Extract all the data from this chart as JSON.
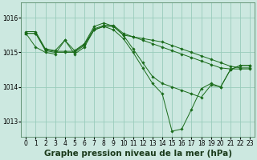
{
  "bg_color": "#cce8e0",
  "grid_color": "#99ccbb",
  "line_color": "#1a6b1a",
  "marker_color": "#1a6b1a",
  "title": "Graphe pression niveau de la mer (hPa)",
  "ylim": [
    1012.55,
    1016.45
  ],
  "yticks": [
    1013,
    1014,
    1015,
    1016
  ],
  "xlim": [
    -0.5,
    23.5
  ],
  "xticks": [
    0,
    1,
    2,
    3,
    4,
    5,
    6,
    7,
    8,
    9,
    10,
    11,
    12,
    13,
    14,
    15,
    16,
    17,
    18,
    19,
    20,
    21,
    22,
    23
  ],
  "series": [
    [
      1015.6,
      1015.6,
      1015.1,
      1015.05,
      1015.35,
      1015.05,
      1015.25,
      1015.75,
      1015.85,
      1015.75,
      1015.5,
      1015.45,
      1015.4,
      1015.35,
      1015.3,
      1015.2,
      1015.1,
      1015.0,
      1014.9,
      1014.8,
      1014.7,
      1014.6,
      1014.55,
      1014.55
    ],
    [
      1015.55,
      1015.55,
      1015.08,
      1015.03,
      1015.03,
      1015.03,
      1015.23,
      1015.68,
      1015.78,
      1015.78,
      1015.55,
      1015.45,
      1015.35,
      1015.25,
      1015.15,
      1015.05,
      1014.95,
      1014.85,
      1014.75,
      1014.65,
      1014.55,
      1014.52,
      1014.52,
      1014.52
    ],
    [
      1015.55,
      1015.55,
      1015.05,
      1015.0,
      1015.0,
      1015.0,
      1015.2,
      1015.65,
      1015.75,
      1015.75,
      1015.5,
      1015.1,
      1014.7,
      1014.3,
      1014.1,
      1014.0,
      1013.9,
      1013.8,
      1013.7,
      1014.05,
      1014.0,
      1014.5,
      1014.62,
      1014.62
    ],
    [
      1015.55,
      1015.15,
      1015.0,
      1014.95,
      1015.35,
      1014.95,
      1015.15,
      1015.65,
      1015.75,
      1015.65,
      1015.4,
      1015.0,
      1014.55,
      1014.1,
      1013.8,
      1012.72,
      1012.78,
      1013.35,
      1013.95,
      1014.1,
      1014.0,
      1014.5,
      1014.62,
      1014.62
    ]
  ],
  "title_fontsize": 7.5,
  "tick_fontsize": 5.5
}
